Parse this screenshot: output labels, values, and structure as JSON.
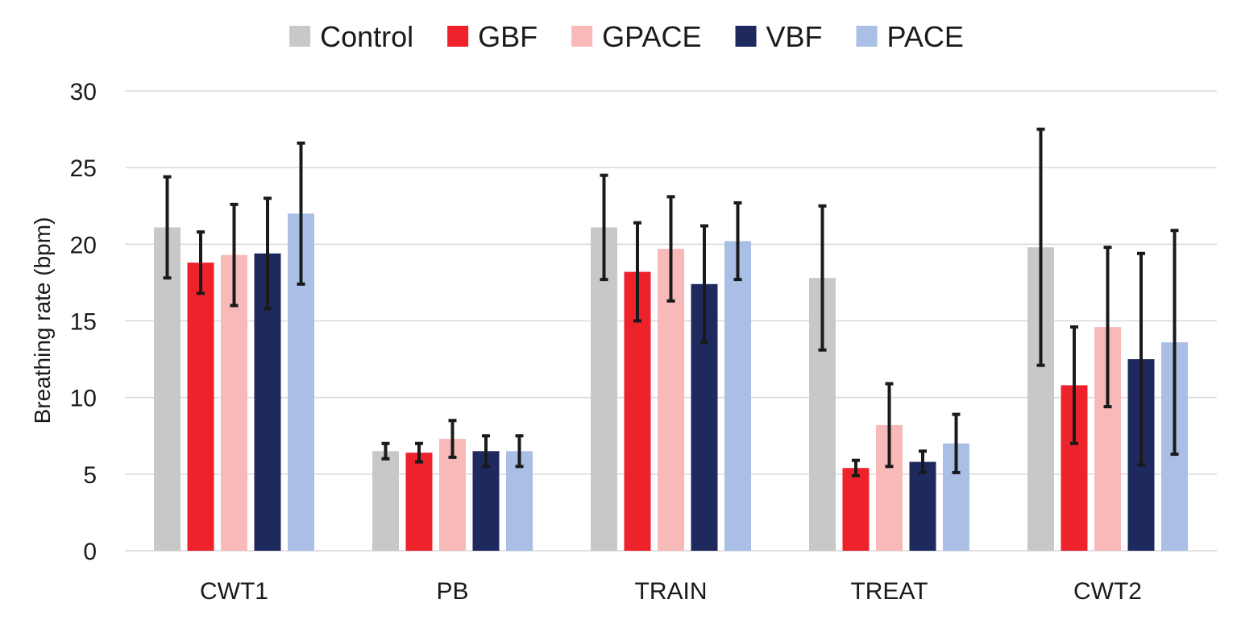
{
  "chart_data": {
    "type": "bar",
    "categories": [
      "CWT1",
      "PB",
      "TRAIN",
      "TREAT",
      "CWT2"
    ],
    "series": [
      {
        "name": "Control",
        "color": "#c8c8c8",
        "values": [
          21.1,
          6.5,
          21.1,
          17.8,
          19.8
        ],
        "errors": [
          3.3,
          0.5,
          3.4,
          4.7,
          7.7
        ]
      },
      {
        "name": "GBF",
        "color": "#ee222b",
        "values": [
          18.8,
          6.4,
          18.2,
          5.4,
          10.8
        ],
        "errors": [
          2.0,
          0.6,
          3.2,
          0.5,
          3.8
        ]
      },
      {
        "name": "GPACE",
        "color": "#f8b9b9",
        "values": [
          19.3,
          7.3,
          19.7,
          8.2,
          14.6
        ],
        "errors": [
          3.3,
          1.2,
          3.4,
          2.7,
          5.2
        ]
      },
      {
        "name": "VBF",
        "color": "#1e2a5e",
        "values": [
          19.4,
          6.5,
          17.4,
          5.8,
          12.5
        ],
        "errors": [
          3.6,
          1.0,
          3.8,
          0.7,
          6.9
        ]
      },
      {
        "name": "PACE",
        "color": "#a9bfe5",
        "values": [
          22.0,
          6.5,
          20.2,
          7.0,
          13.6
        ],
        "errors": [
          4.6,
          1.0,
          2.5,
          1.9,
          7.3
        ]
      }
    ],
    "title": "",
    "xlabel": "",
    "ylabel": "Breathing rate (bpm)",
    "ylim": [
      0,
      30
    ],
    "yticks": [
      0,
      5,
      10,
      15,
      20,
      25,
      30
    ],
    "ytick_labels": [
      "0",
      "5",
      "10",
      "15",
      "20",
      "25",
      "30"
    ],
    "grid": true,
    "legend_position": "top-center"
  }
}
